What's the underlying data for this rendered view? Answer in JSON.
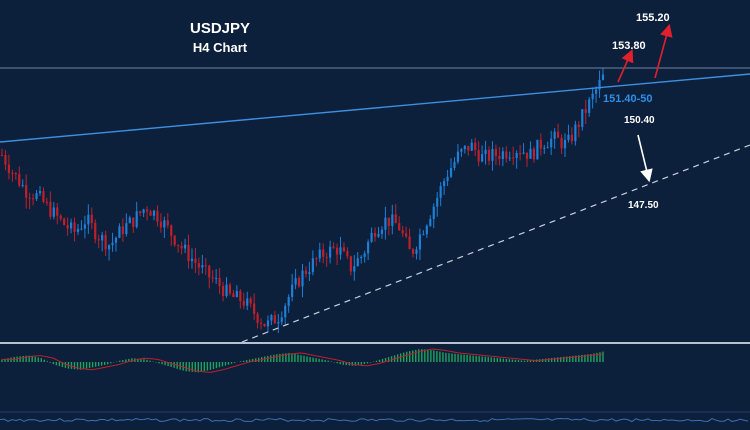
{
  "chart_data": {
    "type": "candlestick",
    "title": "USDJPY",
    "subtitle": "H4 Chart",
    "colors": {
      "background": "#0c1f3b",
      "bull": "#1e7fd6",
      "bear": "#c0202a",
      "trendline": "#3d8fe0",
      "support": "#c9d2de",
      "target_arrow": "#e0202c",
      "down_arrow": "#ffffff",
      "level_text": "#ffffff",
      "zone_text": "#2f8fe8",
      "osc_up": "#1ea35b",
      "osc_line": "#c0202a"
    },
    "annotations": [
      {
        "text": "155.20",
        "role": "target-2"
      },
      {
        "text": "153.80",
        "role": "target-1"
      },
      {
        "text": "151.40-50",
        "role": "breakout-zone"
      },
      {
        "text": "150.40",
        "role": "support-1"
      },
      {
        "text": "147.50",
        "role": "support-2"
      }
    ],
    "price_path": [
      150.9,
      150.3,
      149.8,
      149.6,
      149.2,
      148.8,
      148.5,
      148.9,
      148.4,
      148.1,
      148.6,
      148.9,
      149.3,
      149.0,
      148.5,
      148.0,
      147.6,
      147.2,
      146.9,
      146.5,
      146.4,
      146.0,
      145.6,
      145.9,
      146.6,
      147.2,
      147.6,
      147.9,
      148.0,
      147.4,
      147.8,
      148.6,
      148.9,
      148.7,
      147.8,
      148.6,
      149.4,
      150.3,
      150.9,
      151.2,
      150.8,
      150.9,
      151.0,
      151.1,
      150.9,
      151.3,
      151.4,
      151.2,
      151.9,
      152.6,
      153.3
    ],
    "oscillator": [
      0.2,
      0.4,
      0.5,
      0.3,
      -0.2,
      -0.5,
      -0.6,
      -0.4,
      -0.2,
      0.1,
      0.3,
      0.2,
      -0.1,
      -0.4,
      -0.7,
      -0.8,
      -0.6,
      -0.3,
      0.0,
      0.2,
      0.4,
      0.6,
      0.7,
      0.5,
      0.3,
      0.1,
      -0.2,
      -0.3,
      -0.1,
      0.2,
      0.5,
      0.8,
      1.0,
      0.9,
      0.7,
      0.6,
      0.5,
      0.4,
      0.3,
      0.2,
      0.1,
      0.2,
      0.3,
      0.4,
      0.5,
      0.6,
      0.8
    ]
  }
}
